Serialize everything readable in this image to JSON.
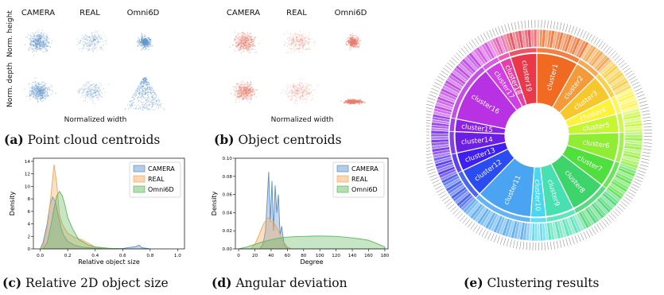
{
  "panel_a": {
    "columns": [
      "CAMERA",
      "REAL",
      "Omni6D"
    ],
    "row_labels": [
      "Norm. height",
      "Norm. depth"
    ],
    "xlabel": "Normalized width",
    "caption_tag": "(a)",
    "caption_text": "Point cloud centroids",
    "color": "#6699cc"
  },
  "panel_b": {
    "columns": [
      "CAMERA",
      "REAL",
      "Omni6D"
    ],
    "xlabel": "Normalized width",
    "caption_tag": "(b)",
    "caption_text": "Object centroids",
    "color": "#e8806f"
  },
  "panel_c": {
    "caption_tag": "(c)",
    "caption_text": "Relative 2D object size"
  },
  "panel_d": {
    "caption_tag": "(d)",
    "caption_text": "Angular deviation"
  },
  "panel_e": {
    "caption_tag": "(e)",
    "caption_text": "Clustering results"
  },
  "chart_data": [
    {
      "type": "area",
      "id": "c",
      "xlabel": "Relative object size",
      "ylabel": "Density",
      "xlim": [
        -0.05,
        1.05
      ],
      "ylim": [
        0,
        14.5
      ],
      "xticks": [
        0.0,
        0.2,
        0.4,
        0.6,
        0.8,
        1.0
      ],
      "yticks": [
        0,
        2,
        4,
        6,
        8,
        10,
        12,
        14
      ],
      "legend_position": "top-right",
      "series": [
        {
          "name": "CAMERA",
          "color": "#5b8fc9",
          "x": [
            0.0,
            0.02,
            0.05,
            0.07,
            0.09,
            0.11,
            0.13,
            0.15,
            0.17,
            0.2,
            0.25,
            0.3,
            0.35,
            0.4,
            0.5,
            0.6,
            0.7,
            0.72,
            0.74,
            0.8
          ],
          "y": [
            0,
            1.0,
            4.0,
            7.0,
            8.3,
            7.6,
            5.5,
            3.5,
            2.2,
            1.2,
            0.6,
            0.3,
            0.2,
            0.1,
            0.05,
            0.05,
            0.4,
            0.6,
            0.2,
            0
          ]
        },
        {
          "name": "REAL",
          "color": "#f2a65a",
          "x": [
            0.0,
            0.02,
            0.04,
            0.06,
            0.08,
            0.1,
            0.12,
            0.14,
            0.16,
            0.18,
            0.2,
            0.25,
            0.3,
            0.35,
            0.4,
            0.5
          ],
          "y": [
            0,
            0.5,
            2.0,
            5.0,
            9.0,
            13.5,
            10.5,
            5.5,
            4.0,
            3.2,
            2.5,
            1.8,
            1.5,
            0.9,
            0.3,
            0
          ]
        },
        {
          "name": "Omni6D",
          "color": "#5cb85c",
          "x": [
            0.02,
            0.05,
            0.08,
            0.1,
            0.12,
            0.14,
            0.16,
            0.18,
            0.2,
            0.24,
            0.28,
            0.35,
            0.4,
            0.5,
            0.6
          ],
          "y": [
            0,
            1.0,
            4.0,
            6.5,
            8.5,
            9.2,
            8.5,
            7.0,
            5.0,
            3.0,
            1.5,
            0.6,
            0.3,
            0.1,
            0
          ]
        }
      ]
    },
    {
      "type": "area",
      "id": "d",
      "xlabel": "Degree",
      "ylabel": "Density",
      "xlim": [
        -4,
        184
      ],
      "ylim": [
        0,
        0.1
      ],
      "xticks": [
        0,
        20,
        40,
        60,
        80,
        100,
        120,
        140,
        160,
        180
      ],
      "yticks": [
        0.0,
        0.02,
        0.04,
        0.06,
        0.08,
        0.1
      ],
      "legend_position": "top-right",
      "series": [
        {
          "name": "CAMERA",
          "color": "#5b8fc9",
          "x": [
            26,
            30,
            33,
            35,
            37,
            39,
            41,
            43,
            45,
            47,
            49,
            51,
            53,
            56,
            60
          ],
          "y": [
            0,
            0.005,
            0.02,
            0.05,
            0.085,
            0.03,
            0.075,
            0.02,
            0.07,
            0.04,
            0.06,
            0.015,
            0.025,
            0.005,
            0
          ]
        },
        {
          "name": "REAL",
          "color": "#f2a65a",
          "x": [
            15,
            20,
            25,
            28,
            31,
            34,
            37,
            40,
            43,
            46,
            50,
            55,
            60,
            65
          ],
          "y": [
            0,
            0.005,
            0.015,
            0.022,
            0.028,
            0.032,
            0.035,
            0.03,
            0.03,
            0.025,
            0.018,
            0.008,
            0.002,
            0
          ]
        },
        {
          "name": "Omni6D",
          "color": "#5cb85c",
          "x": [
            0,
            10,
            20,
            30,
            40,
            50,
            60,
            70,
            80,
            90,
            100,
            110,
            120,
            130,
            140,
            150,
            160,
            170,
            180
          ],
          "y": [
            0,
            0.002,
            0.005,
            0.008,
            0.01,
            0.012,
            0.013,
            0.0135,
            0.0138,
            0.014,
            0.0142,
            0.014,
            0.0138,
            0.013,
            0.012,
            0.011,
            0.0095,
            0.006,
            0.002
          ]
        }
      ]
    },
    {
      "type": "pie",
      "id": "e",
      "inner_ring": [
        {
          "name": "cluster1",
          "share": 8.2,
          "color": "#f06a22"
        },
        {
          "name": "cluster2",
          "share": 4.4,
          "color": "#f59a38"
        },
        {
          "name": "cluster3",
          "share": 5.0,
          "color": "#f7c82e"
        },
        {
          "name": "cluster4",
          "share": 3.3,
          "color": "#fff23d"
        },
        {
          "name": "cluster5",
          "share": 3.6,
          "color": "#c6f531"
        },
        {
          "name": "cluster6",
          "share": 5.6,
          "color": "#8fee33"
        },
        {
          "name": "cluster7",
          "share": 5.3,
          "color": "#4fe03d"
        },
        {
          "name": "cluster8",
          "share": 7.2,
          "color": "#3dd46b"
        },
        {
          "name": "cluster9",
          "share": 5.6,
          "color": "#48e0b0"
        },
        {
          "name": "cluster10",
          "share": 3.0,
          "color": "#4ad6ef"
        },
        {
          "name": "cluster11",
          "share": 11.1,
          "color": "#4aa4f2"
        },
        {
          "name": "cluster12",
          "share": 5.6,
          "color": "#2b4cf0"
        },
        {
          "name": "cluster13",
          "share": 3.6,
          "color": "#3f1ff0"
        },
        {
          "name": "cluster14",
          "share": 4.2,
          "color": "#6a1fe2"
        },
        {
          "name": "cluster15",
          "share": 2.5,
          "color": "#8c22e4"
        },
        {
          "name": "cluster16",
          "share": 11.1,
          "color": "#b832e4"
        },
        {
          "name": "cluster17",
          "share": 3.3,
          "color": "#d23ee6"
        },
        {
          "name": "cluster18",
          "share": 2.2,
          "color": "#e63fa8"
        },
        {
          "name": "cluster19",
          "share": 5.2,
          "color": "#e8384a"
        }
      ]
    }
  ]
}
